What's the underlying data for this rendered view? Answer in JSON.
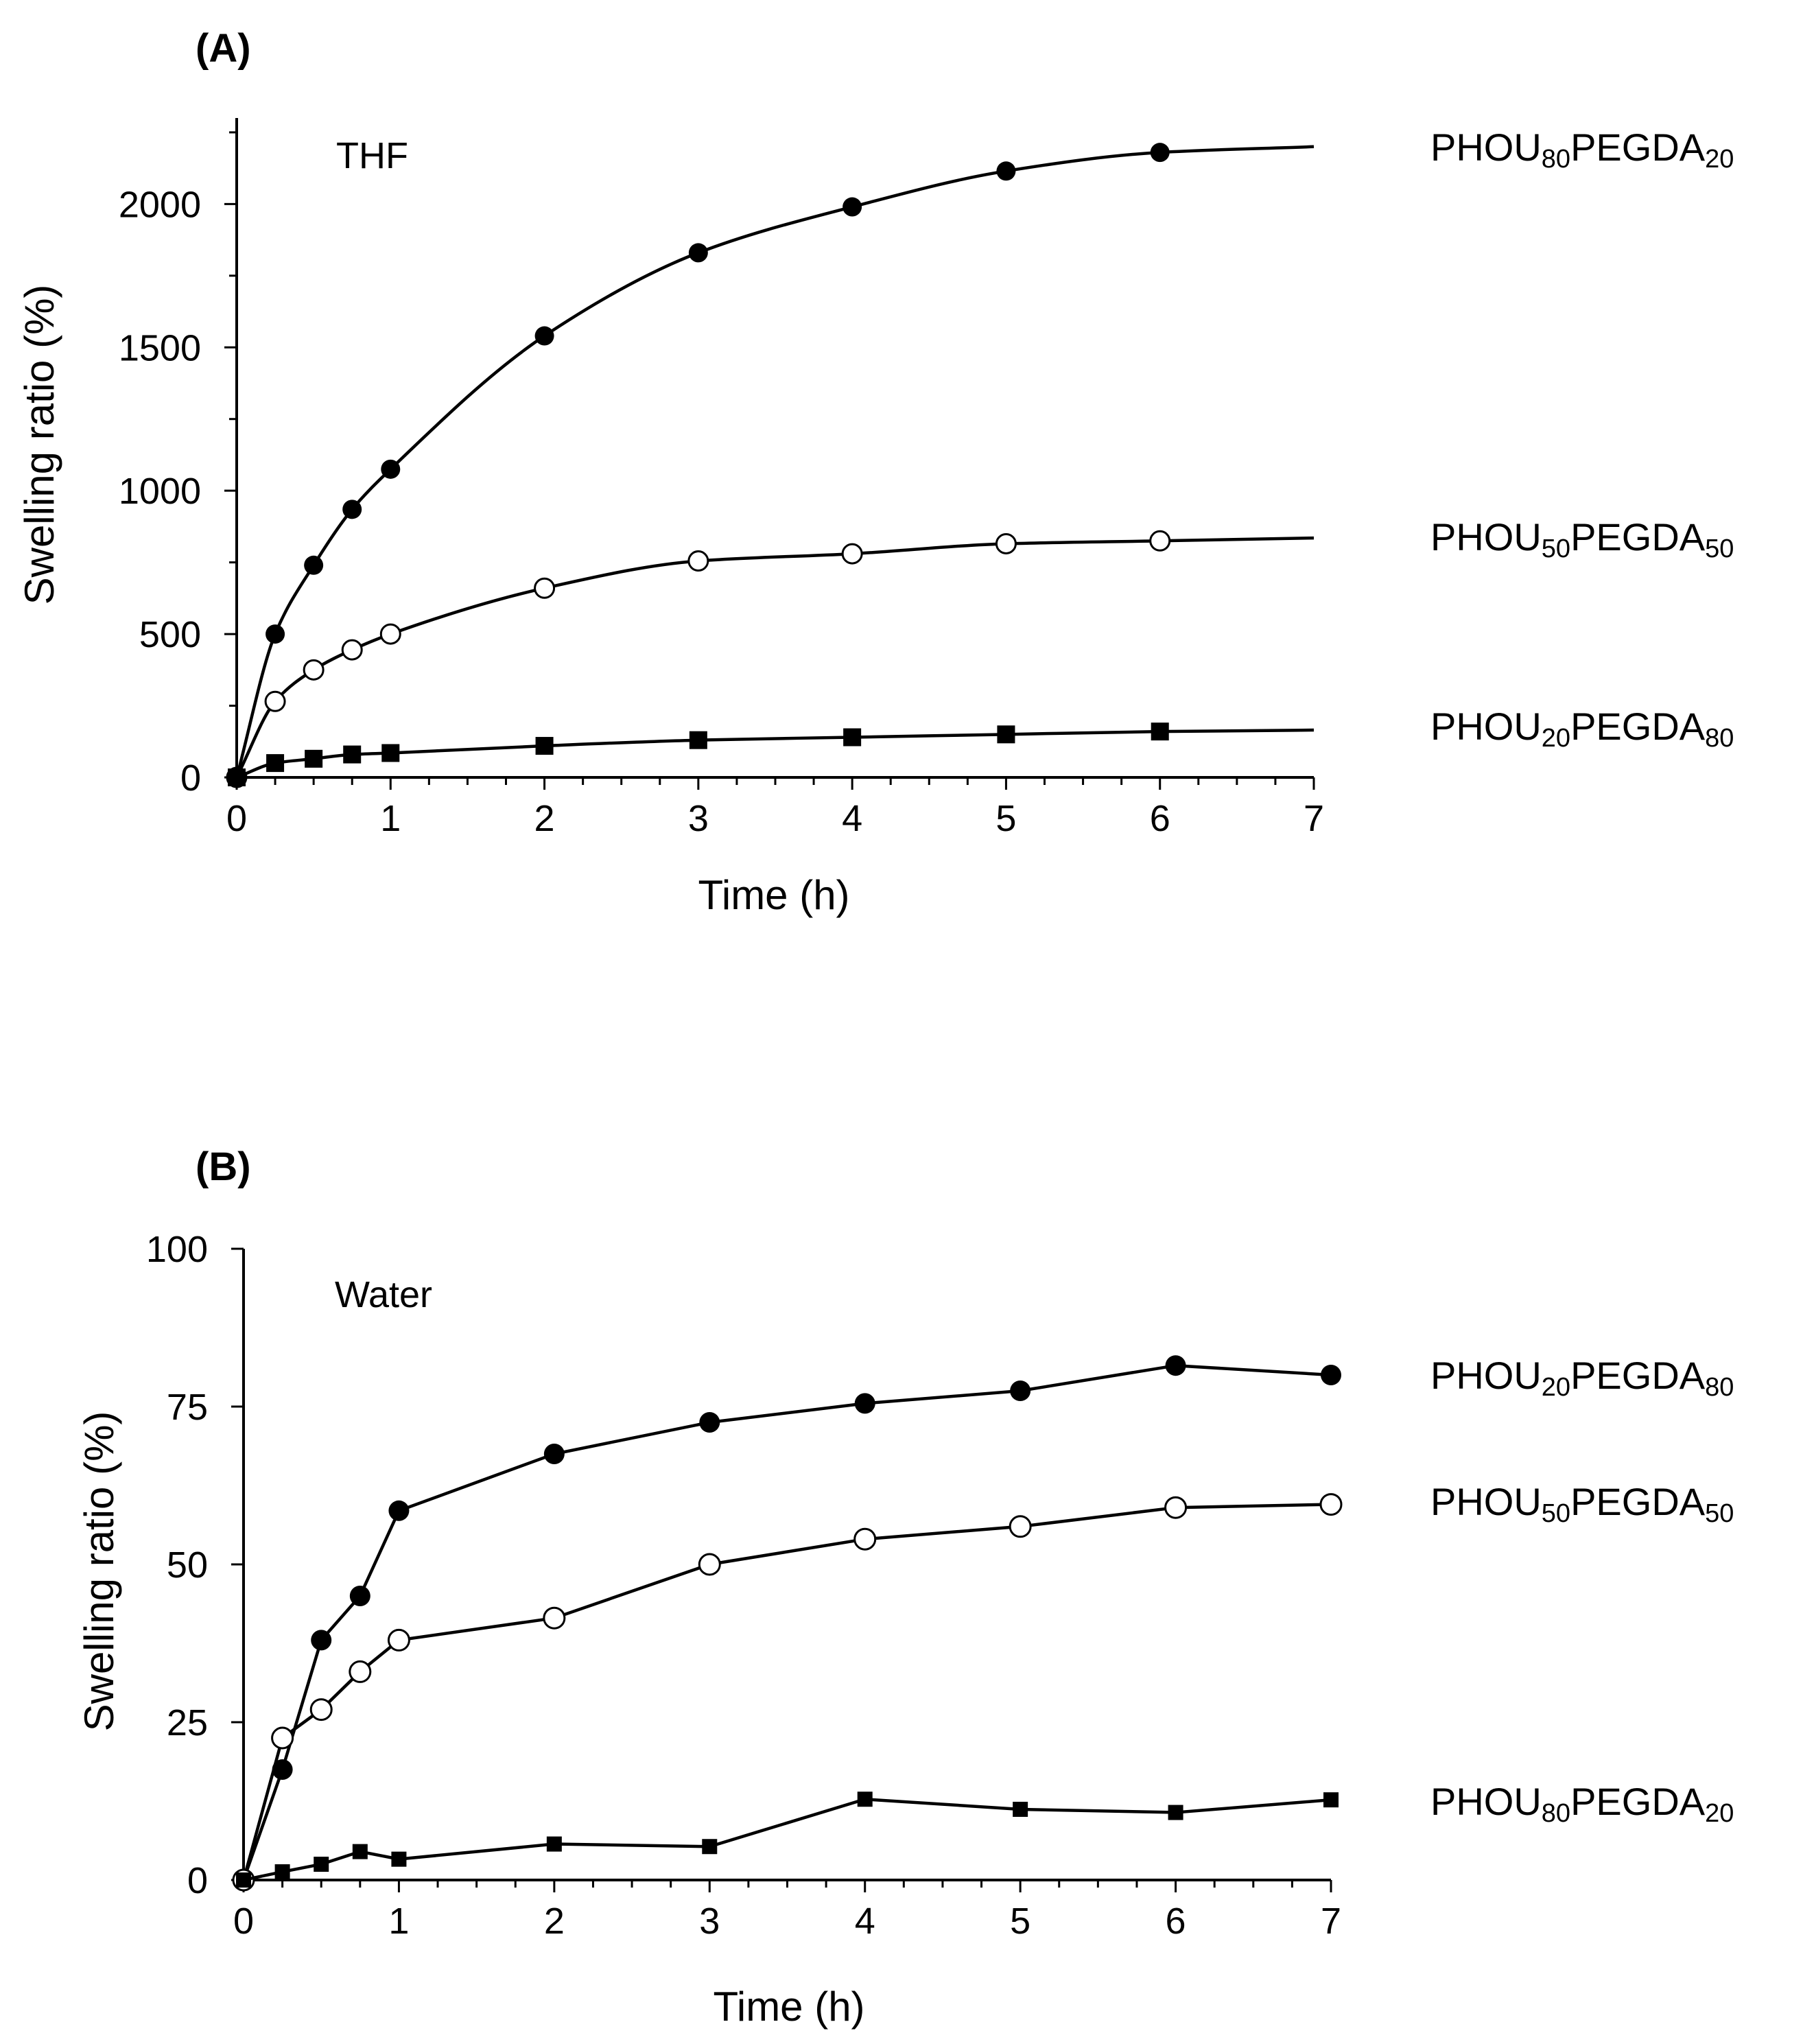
{
  "chart_data": [
    {
      "type": "line",
      "panel_label": "(A)",
      "solvent": "THF",
      "xlabel": "Time (h)",
      "ylabel": "Swelling ratio (%)",
      "xlim": [
        0,
        7
      ],
      "ylim": [
        0,
        2300
      ],
      "xticks": [
        "0",
        "1",
        "2",
        "3",
        "4",
        "5",
        "6",
        "7"
      ],
      "yticks": [
        "0",
        "500",
        "1000",
        "1500",
        "2000"
      ],
      "smooth": true,
      "series": [
        {
          "name": "PHOU80PEGDA20",
          "base": "PHOU",
          "sub1": "80",
          "mid": "PEGDA",
          "sub2": "20",
          "marker": "filled-circle",
          "label_value": 2200,
          "x": [
            0,
            0.25,
            0.5,
            0.75,
            1,
            2,
            3,
            4,
            5,
            6
          ],
          "values": [
            0,
            500,
            740,
            935,
            1075,
            1540,
            1830,
            1990,
            2115,
            2180
          ],
          "curve_end": [
            7,
            2200
          ]
        },
        {
          "name": "PHOU50PEGDA50",
          "base": "PHOU",
          "sub1": "50",
          "mid": "PEGDA",
          "sub2": "50",
          "marker": "open-circle",
          "label_value": 840,
          "x": [
            0,
            0.25,
            0.5,
            0.75,
            1,
            2,
            3,
            4,
            5,
            6
          ],
          "values": [
            0,
            265,
            375,
            445,
            500,
            660,
            755,
            780,
            815,
            825
          ],
          "curve_end": [
            7,
            835
          ]
        },
        {
          "name": "PHOU20PEGDA80",
          "base": "PHOU",
          "sub1": "20",
          "mid": "PEGDA",
          "sub2": "80",
          "marker": "filled-square",
          "label_value": 180,
          "x": [
            0,
            0.25,
            0.5,
            0.75,
            1,
            2,
            3,
            4,
            5,
            6
          ],
          "values": [
            0,
            50,
            65,
            80,
            85,
            110,
            130,
            140,
            150,
            160
          ],
          "curve_end": [
            7,
            165
          ]
        }
      ]
    },
    {
      "type": "line",
      "panel_label": "(B)",
      "solvent": "Water",
      "xlabel": "Time (h)",
      "ylabel": "Swelling ratio (%)",
      "xlim": [
        0,
        7
      ],
      "ylim": [
        0,
        100
      ],
      "xticks": [
        "0",
        "1",
        "2",
        "3",
        "4",
        "5",
        "6",
        "7"
      ],
      "yticks": [
        "0",
        "25",
        "50",
        "75",
        "100"
      ],
      "smooth": false,
      "series": [
        {
          "name": "PHOU20PEGDA80",
          "base": "PHOU",
          "sub1": "20",
          "mid": "PEGDA",
          "sub2": "80",
          "marker": "filled-circle",
          "label_value": 80,
          "x": [
            0,
            0.25,
            0.5,
            0.75,
            1,
            2,
            3,
            4,
            5,
            6,
            7
          ],
          "values": [
            0,
            17.5,
            38,
            45,
            58.5,
            67.5,
            72.5,
            75.5,
            77.5,
            81.5,
            80
          ]
        },
        {
          "name": "PHOU50PEGDA50",
          "base": "PHOU",
          "sub1": "50",
          "mid": "PEGDA",
          "sub2": "50",
          "marker": "open-circle",
          "label_value": 60,
          "x": [
            0,
            0.25,
            0.5,
            0.75,
            1,
            2,
            3,
            4,
            5,
            6,
            7
          ],
          "values": [
            0,
            22.5,
            27,
            33,
            38,
            41.5,
            50,
            54,
            56,
            59,
            59.5
          ]
        },
        {
          "name": "PHOU80PEGDA20",
          "base": "PHOU",
          "sub1": "80",
          "mid": "PEGDA",
          "sub2": "20",
          "marker": "filled-square",
          "label_value": 12.5,
          "x": [
            0,
            0.25,
            0.5,
            0.75,
            1,
            2,
            3,
            4,
            5,
            6,
            7
          ],
          "values": [
            0,
            1.3,
            2.5,
            4.5,
            3.3,
            5.7,
            5.3,
            12.8,
            11.2,
            10.7,
            12.7
          ]
        }
      ]
    }
  ]
}
